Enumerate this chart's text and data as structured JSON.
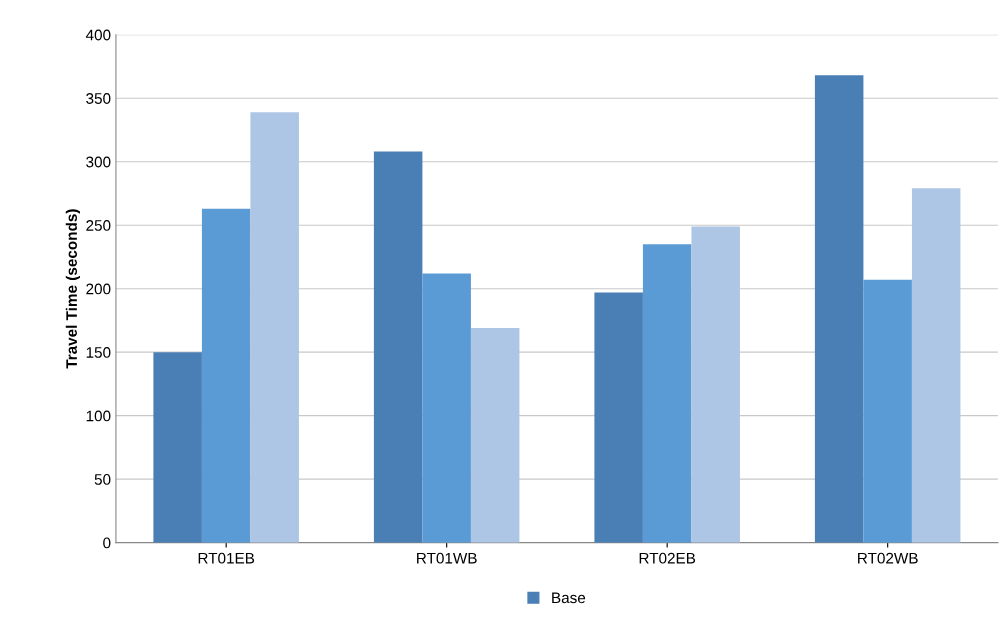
{
  "chart_data": {
    "type": "bar",
    "ylabel": "Travel Time (seconds)",
    "categories": [
      "RT01EB",
      "RT01WB",
      "RT02EB",
      "RT02WB"
    ],
    "series": [
      {
        "name": "Base",
        "color": "#4a7fb5",
        "values": [
          150,
          308,
          197,
          368
        ]
      },
      {
        "color": "#5b9bd5",
        "values": [
          263,
          212,
          235,
          207
        ]
      },
      {
        "color": "#adc6e5",
        "values": [
          339,
          169,
          249,
          279
        ]
      }
    ],
    "ylim": [
      0,
      400
    ],
    "yticks": [
      0,
      50,
      100,
      150,
      200,
      250,
      300,
      350,
      400
    ],
    "grid": "y",
    "legend": "bottom"
  }
}
